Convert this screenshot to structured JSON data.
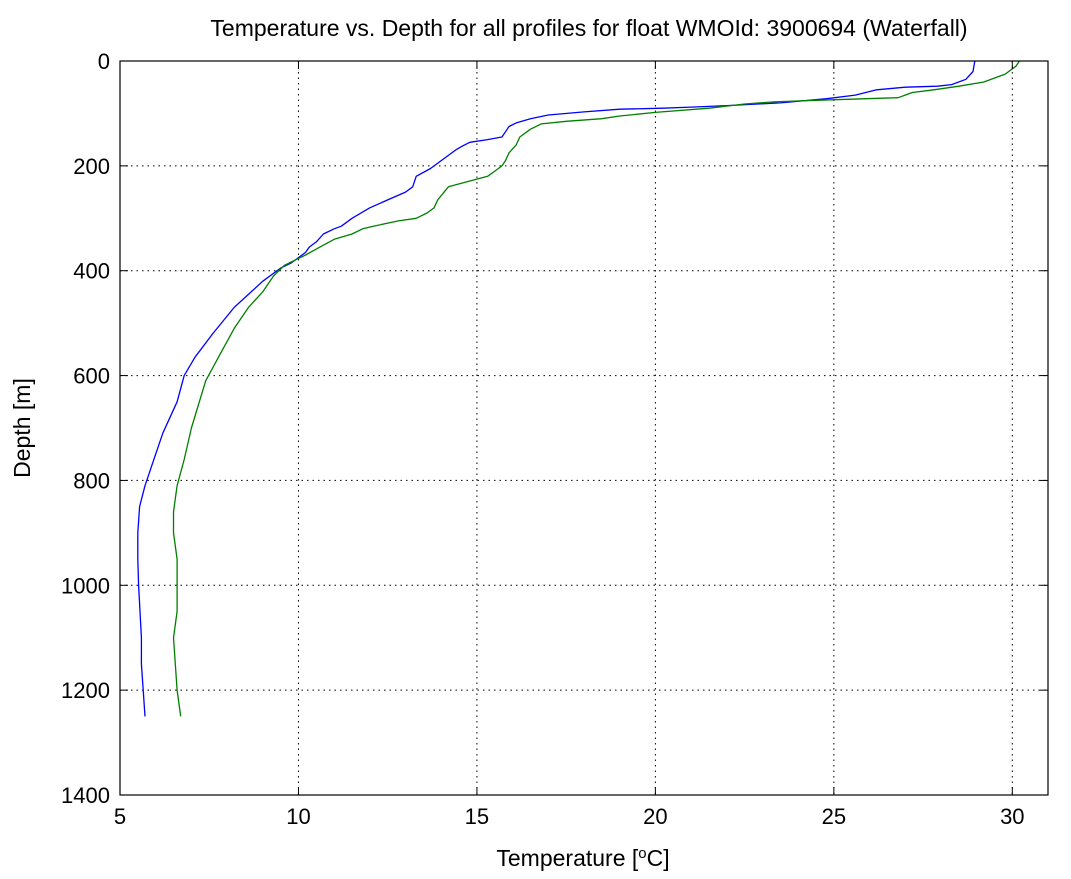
{
  "chart_data": {
    "type": "line",
    "title": "Temperature vs. Depth for all profiles for float WMOId: 3900694 (Waterfall)",
    "xlabel_main": "Temperature [",
    "xlabel_sup": "o",
    "xlabel_unit": "C]",
    "ylabel": "Depth [m]",
    "xlim": [
      5,
      31
    ],
    "ylim": [
      0,
      1400
    ],
    "y_reversed": true,
    "grid": true,
    "x_ticks": [
      5,
      10,
      15,
      20,
      25,
      30
    ],
    "y_ticks": [
      0,
      200,
      400,
      600,
      800,
      1000,
      1200,
      1400
    ],
    "series": [
      {
        "color": "#0000ff",
        "x": [
          28.95,
          28.9,
          28.7,
          28.3,
          27.9,
          27.0,
          26.2,
          25.6,
          24.8,
          23.5,
          22.0,
          21.0,
          20.2,
          19.0,
          18.0,
          17.0,
          16.5,
          16.1,
          15.9,
          15.8,
          15.7,
          15.3,
          14.8,
          14.6,
          14.4,
          14.2,
          14.0,
          13.7,
          13.3,
          13.2,
          13.0,
          12.5,
          12.0,
          11.5,
          11.2,
          11.0,
          10.7,
          10.5,
          10.3,
          10.2,
          10.0,
          9.8,
          9.5,
          9.0,
          8.2,
          7.6,
          7.1,
          6.8,
          6.6,
          6.2,
          5.9,
          5.7,
          5.55,
          5.5,
          5.5,
          5.52,
          5.6,
          5.6,
          5.65,
          5.7
        ],
        "y": [
          0,
          20,
          35,
          45,
          48,
          50,
          55,
          65,
          72,
          80,
          85,
          88,
          90,
          92,
          97,
          103,
          110,
          118,
          125,
          135,
          145,
          150,
          155,
          162,
          170,
          180,
          190,
          205,
          220,
          240,
          250,
          265,
          280,
          300,
          315,
          320,
          330,
          345,
          355,
          365,
          375,
          385,
          395,
          420,
          470,
          520,
          565,
          600,
          650,
          710,
          770,
          810,
          850,
          900,
          950,
          1000,
          1100,
          1150,
          1200,
          1250
        ]
      },
      {
        "color": "#008000",
        "x": [
          30.2,
          30.1,
          29.8,
          29.2,
          28.5,
          27.8,
          27.2,
          27.0,
          26.8,
          24.5,
          23.3,
          22.5,
          21.5,
          20.0,
          19.0,
          18.5,
          17.5,
          16.8,
          16.5,
          16.2,
          16.1,
          15.9,
          15.8,
          15.7,
          15.5,
          15.3,
          14.2,
          13.9,
          13.8,
          13.6,
          13.3,
          12.8,
          12.1,
          11.8,
          11.5,
          11.0,
          10.6,
          10.2,
          9.9,
          9.6,
          9.3,
          9.0,
          8.6,
          8.2,
          7.8,
          7.4,
          7.0,
          6.8,
          6.6,
          6.5,
          6.5,
          6.6,
          6.6,
          6.5,
          6.6,
          6.7
        ],
        "y": [
          0,
          10,
          25,
          40,
          48,
          55,
          60,
          65,
          70,
          75,
          78,
          82,
          90,
          98,
          105,
          110,
          115,
          120,
          130,
          145,
          160,
          175,
          190,
          200,
          210,
          220,
          240,
          265,
          280,
          290,
          300,
          305,
          315,
          320,
          330,
          340,
          355,
          370,
          380,
          390,
          410,
          440,
          470,
          510,
          560,
          610,
          700,
          760,
          810,
          860,
          900,
          950,
          1050,
          1100,
          1200,
          1250
        ]
      }
    ]
  }
}
